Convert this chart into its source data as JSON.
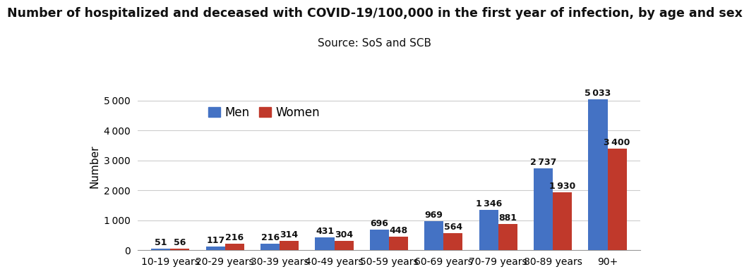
{
  "title": "Number of hospitalized and deceased with COVID-19/100,000 in the first year of infection, by age and sex",
  "subtitle": "Source: SoS and SCB",
  "categories": [
    "10-19 years",
    "20-29 years",
    "30-39 years",
    "40-49 years",
    "50-59 years",
    "60-69 years",
    "70-79 years",
    "80-89 years",
    "90+"
  ],
  "men_values": [
    51,
    117,
    216,
    431,
    696,
    969,
    1346,
    2737,
    5033
  ],
  "women_values": [
    56,
    216,
    314,
    304,
    448,
    564,
    881,
    1930,
    3400
  ],
  "men_color": "#4472C4",
  "women_color": "#C0392B",
  "ylabel": "Number",
  "ylim": [
    0,
    5600
  ],
  "yticks": [
    0,
    1000,
    2000,
    3000,
    4000,
    5000
  ],
  "ytick_labels": [
    "0",
    "1 000",
    "2 000",
    "3 000",
    "4 000",
    "5 000"
  ],
  "background_color": "#ffffff",
  "grid_color": "#cccccc",
  "title_fontsize": 12.5,
  "subtitle_fontsize": 11,
  "label_fontsize": 9,
  "bar_width": 0.35,
  "legend_labels": [
    "Men",
    "Women"
  ]
}
